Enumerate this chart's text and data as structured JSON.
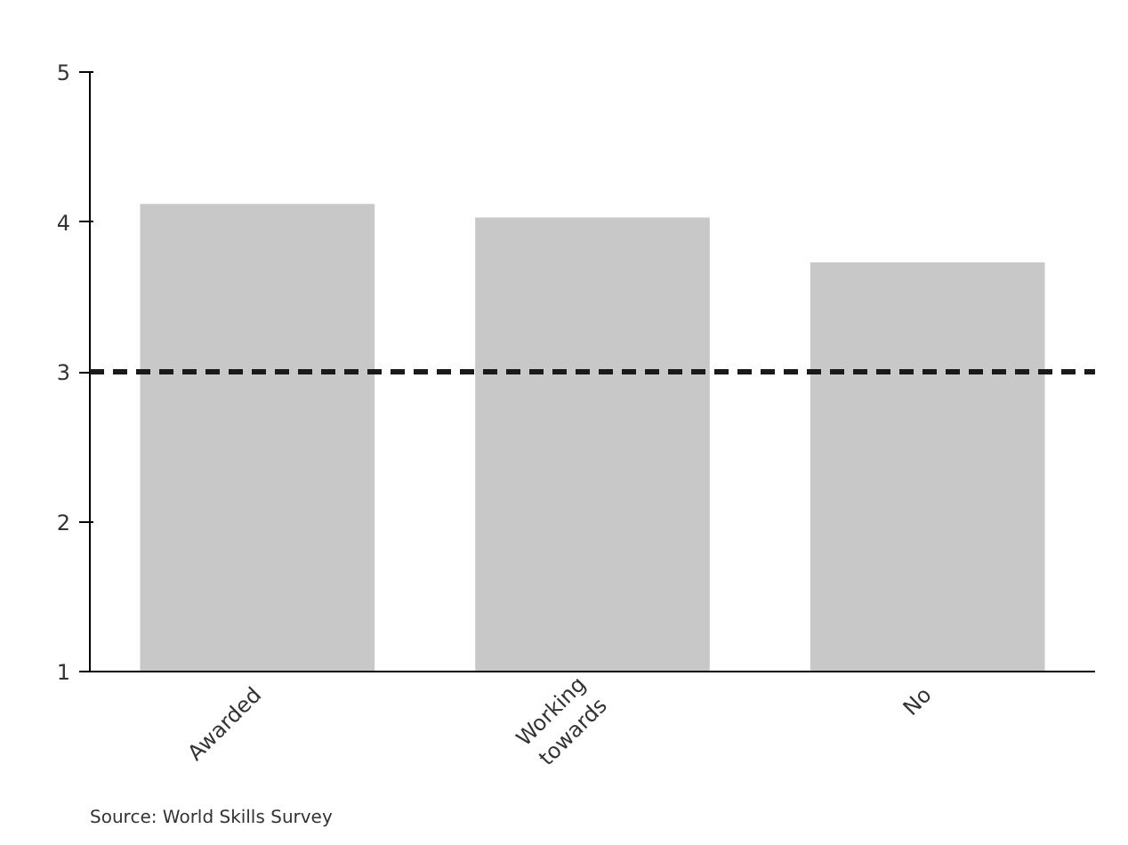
{
  "chart_data": {
    "type": "bar",
    "categories": [
      "Awarded",
      "Working\ntowards",
      "No"
    ],
    "values": [
      4.12,
      4.03,
      3.73
    ],
    "color": "#c8c8c8",
    "ylim": [
      1,
      5
    ],
    "yticks": [
      1,
      2,
      3,
      4,
      5
    ],
    "grid": false,
    "ref_lines": [
      {
        "axis": "y",
        "value": 3,
        "color": "#1a1a1a",
        "line_style": "dashed"
      }
    ],
    "annotations": [
      "Source: World Skills Survey"
    ]
  }
}
